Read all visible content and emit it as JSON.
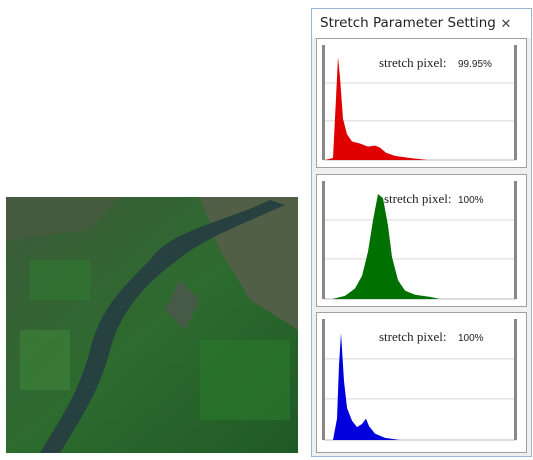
{
  "dialog": {
    "title": "Stretch Parameter Setting",
    "close": "✕",
    "panels": [
      {
        "label": "stretch pixel:",
        "value": "99.95%"
      },
      {
        "label": "stretch pixel:",
        "value": "100%"
      },
      {
        "label": "stretch pixel:",
        "value": "100%"
      }
    ]
  }
}
